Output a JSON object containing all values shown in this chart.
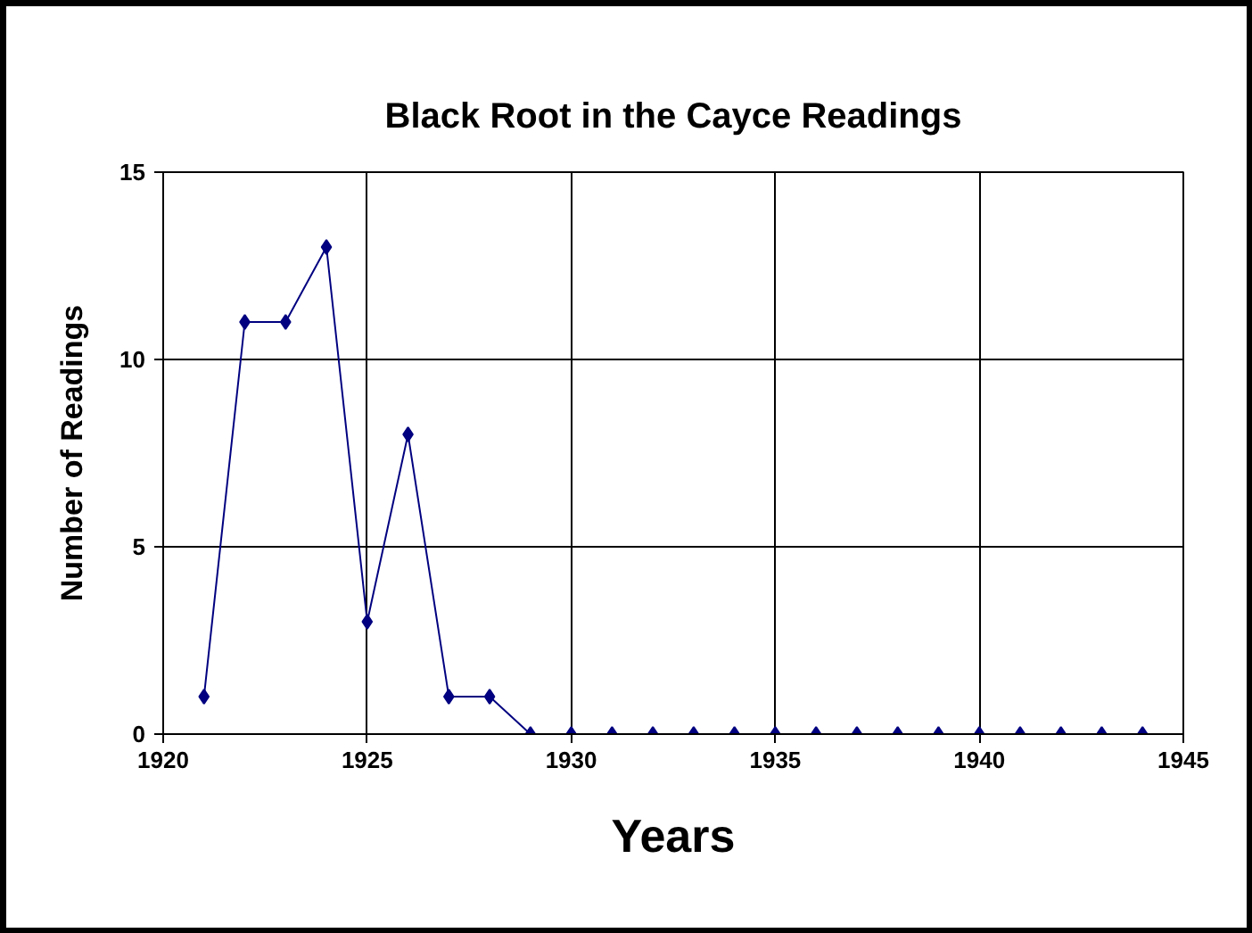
{
  "chart_data": {
    "type": "line",
    "title": "Black Root in the Cayce Readings",
    "xlabel": "Years",
    "ylabel": "Number of Readings",
    "x": [
      1921,
      1922,
      1923,
      1924,
      1925,
      1926,
      1927,
      1928,
      1929,
      1930,
      1931,
      1932,
      1933,
      1934,
      1935,
      1936,
      1937,
      1938,
      1939,
      1940,
      1941,
      1942,
      1943,
      1944
    ],
    "series": [
      {
        "color": "#000080",
        "values": [
          1,
          11,
          11,
          13,
          3,
          8,
          1,
          1,
          0,
          0,
          0,
          0,
          0,
          0,
          0,
          0,
          0,
          0,
          0,
          0,
          0,
          0,
          0,
          0
        ]
      }
    ],
    "xlim": [
      1920,
      1945
    ],
    "xticks": [
      1920,
      1925,
      1930,
      1935,
      1940,
      1945
    ],
    "ylim": [
      0,
      15
    ],
    "yticks": [
      0,
      5,
      10,
      15
    ],
    "grid": true,
    "marker": "diamond",
    "line_style": "solid"
  }
}
